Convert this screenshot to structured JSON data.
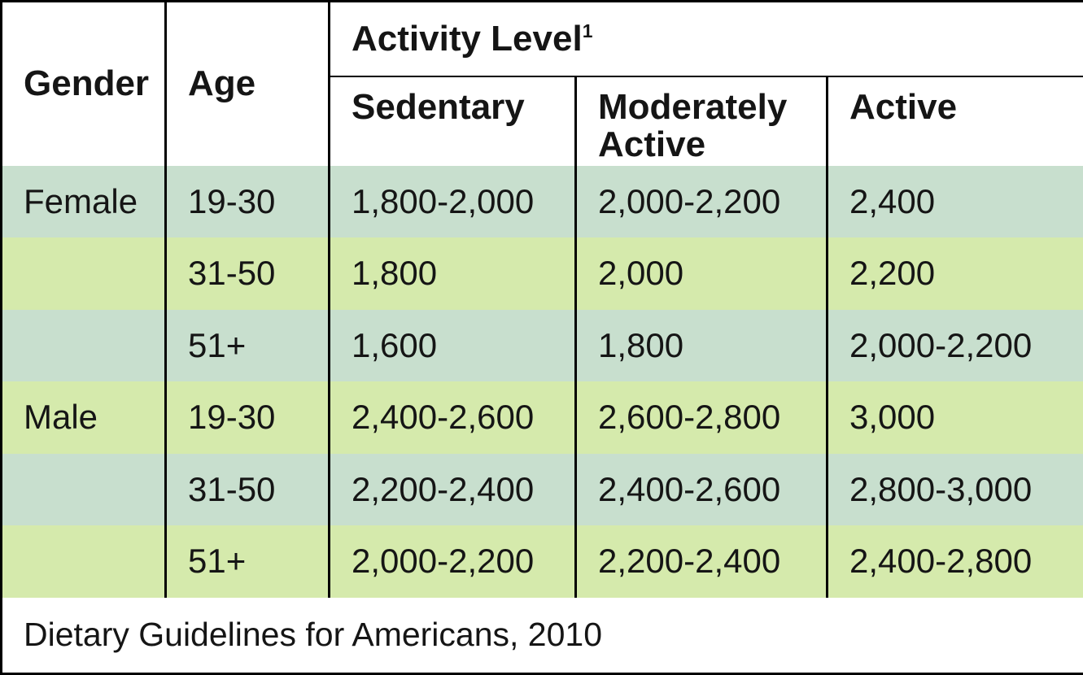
{
  "table": {
    "header": {
      "gender": "Gender",
      "age": "Age",
      "activity_level": "Activity Level",
      "activity_level_superscript": "1",
      "columns": [
        "Sedentary",
        "Moderately Active",
        "Active"
      ]
    },
    "rows": [
      {
        "gender": "Female",
        "age": "19-30",
        "sedentary": "1,800-2,000",
        "moderately_active": "2,000-2,200",
        "active": "2,400"
      },
      {
        "gender": "",
        "age": "31-50",
        "sedentary": "1,800",
        "moderately_active": "2,000",
        "active": "2,200"
      },
      {
        "gender": "",
        "age": "51+",
        "sedentary": "1,600",
        "moderately_active": "1,800",
        "active": "2,000-2,200"
      },
      {
        "gender": "Male",
        "age": "19-30",
        "sedentary": "2,400-2,600",
        "moderately_active": "2,600-2,800",
        "active": "3,000"
      },
      {
        "gender": "",
        "age": "31-50",
        "sedentary": "2,200-2,400",
        "moderately_active": "2,400-2,600",
        "active": "2,800-3,000"
      },
      {
        "gender": "",
        "age": "51+",
        "sedentary": "2,000-2,200",
        "moderately_active": "2,200-2,400",
        "active": "2,400-2,800"
      }
    ],
    "footer": "Dietary Guidelines for Americans, 2010"
  },
  "colors": {
    "row_teal": "#c8dfce",
    "row_green": "#d5eaac",
    "border": "#000000",
    "header_background": "#ffffff",
    "text": "#151515"
  },
  "chart_data": {
    "type": "table",
    "title": "Activity Level",
    "columns": [
      "Gender",
      "Age",
      "Sedentary",
      "Moderately Active",
      "Active"
    ],
    "rows": [
      [
        "Female",
        "19-30",
        "1,800-2,000",
        "2,000-2,200",
        "2,400"
      ],
      [
        "",
        "31-50",
        "1,800",
        "2,000",
        "2,200"
      ],
      [
        "",
        "51+",
        "1,600",
        "1,800",
        "2,000-2,200"
      ],
      [
        "Male",
        "19-30",
        "2,400-2,600",
        "2,600-2,800",
        "3,000"
      ],
      [
        "",
        "31-50",
        "2,200-2,400",
        "2,400-2,600",
        "2,800-3,000"
      ],
      [
        "",
        "51+",
        "2,000-2,200",
        "2,200-2,400",
        "2,400-2,800"
      ]
    ],
    "source_note": "Dietary Guidelines for Americans, 2010"
  }
}
